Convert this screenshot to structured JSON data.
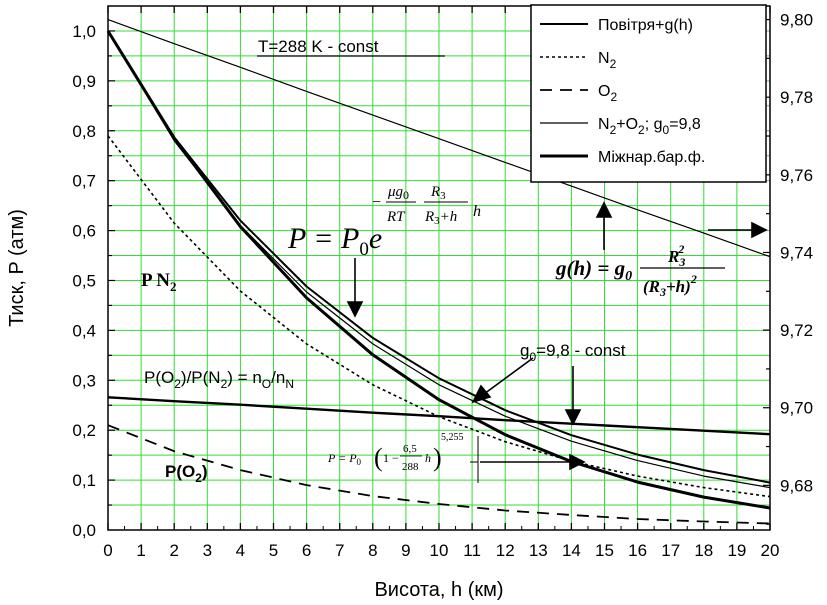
{
  "chart_data": {
    "type": "line",
    "xlabel": "Висота, h (км)",
    "ylabel": "Тиск, P (атм)",
    "xlim": [
      0,
      20
    ],
    "ylim": [
      0,
      1.05
    ],
    "y2lim": [
      9.6685,
      9.8035
    ],
    "x_ticks": [
      "0",
      "1",
      "2",
      "3",
      "4",
      "5",
      "6",
      "7",
      "8",
      "9",
      "10",
      "11",
      "12",
      "13",
      "14",
      "15",
      "16",
      "17",
      "18",
      "19",
      "20"
    ],
    "y_ticks": [
      "0,0",
      "0,1",
      "0,2",
      "0,3",
      "0,4",
      "0,5",
      "0,6",
      "0,7",
      "0,8",
      "0,9",
      "1,0"
    ],
    "y2_ticks": [
      "9,68",
      "9,70",
      "9,72",
      "9,74",
      "9,76",
      "9,78",
      "9,80"
    ],
    "grid": true,
    "grid_color": "#33dd33",
    "legend_position": "top-right",
    "legend": [
      {
        "label": "Повітря+g(h)",
        "style": "solid",
        "width": 2
      },
      {
        "label": "N",
        "sub": "2",
        "style": "dotted",
        "width": 1.6
      },
      {
        "label": "O",
        "sub": "2",
        "style": "dashed",
        "width": 1.8
      },
      {
        "label": "N",
        "sub": "2",
        "rest": "+O",
        "sub2": "2",
        "tail": "; g",
        "sub3": "0",
        "tail2": "=9,8",
        "style": "solid",
        "width": 1.2
      },
      {
        "label": "Міжнар.бар.ф.",
        "style": "solid",
        "width": 3
      }
    ],
    "x": [
      0,
      2,
      4,
      6,
      8,
      10,
      12,
      14,
      16,
      18,
      20
    ],
    "series": [
      {
        "key": "air_gh",
        "values": [
          1.0,
          0.787,
          0.62,
          0.488,
          0.385,
          0.304,
          0.24,
          0.19,
          0.151,
          0.12,
          0.095
        ],
        "style": "solid",
        "width": 2
      },
      {
        "key": "n2",
        "values": [
          0.79,
          0.615,
          0.479,
          0.373,
          0.291,
          0.227,
          0.177,
          0.138,
          0.108,
          0.085,
          0.067
        ],
        "style": "dotted",
        "width": 1.6
      },
      {
        "key": "o2",
        "values": [
          0.21,
          0.158,
          0.12,
          0.09,
          0.068,
          0.052,
          0.039,
          0.03,
          0.022,
          0.017,
          0.013
        ],
        "style": "dashed",
        "width": 1.8
      },
      {
        "key": "n2_o2_g0",
        "values": [
          1.0,
          0.78,
          0.61,
          0.477,
          0.373,
          0.291,
          0.228,
          0.178,
          0.139,
          0.108,
          0.085
        ],
        "style": "solid",
        "width": 1.2
      },
      {
        "key": "intl_baro",
        "values": [
          1.0,
          0.785,
          0.608,
          0.465,
          0.351,
          0.261,
          0.191,
          0.137,
          0.096,
          0.066,
          0.044
        ],
        "style": "solid",
        "width": 3
      },
      {
        "key": "ratio",
        "values": [
          0.266,
          0.258,
          0.251,
          0.243,
          0.235,
          0.228,
          0.22,
          0.213,
          0.206,
          0.199,
          0.192
        ],
        "style": "solid",
        "width": 2.4
      },
      {
        "key": "g_h",
        "axis": "right",
        "values": [
          9.8,
          9.7938,
          9.7877,
          9.7815,
          9.7754,
          9.7693,
          9.7632,
          9.7571,
          9.751,
          9.745,
          9.7389
        ],
        "style": "solid",
        "width": 1.2
      }
    ],
    "annotations": {
      "temperature": "T=288 K - const",
      "pn2": "P N",
      "pn2_sub": "2",
      "po2": "P(O",
      "po2_sub": "2",
      "ratio_parts": [
        "P(O",
        "2",
        ")/P(N",
        "2",
        ") = n",
        "O",
        "/n",
        "N"
      ],
      "g0_const": "g",
      "g0_const_sub": "0",
      "g0_const_rest": "=9,8 - const",
      "formula_exp": "P = P",
      "formula_exp_sub": "0",
      "formula_exp_e": "e",
      "formula_exp_mu": "μg",
      "formula_exp_mu_sub": "0",
      "formula_exp_rt": "RT",
      "formula_exp_r3": "R",
      "formula_exp_r3_sub": "3",
      "formula_exp_den": "R",
      "formula_exp_den_sub": "3",
      "formula_exp_den_rest": "+h",
      "formula_exp_h": "h",
      "formula_g": "g(h) = g",
      "formula_g_sub": "0",
      "formula_g_num": "R",
      "formula_g_num_sub": "3",
      "formula_g_num_sup": "2",
      "formula_g_den": "(R",
      "formula_g_den_sub": "3",
      "formula_g_den_rest": "+h)",
      "formula_g_den_sup": "2",
      "formula_baro": "P = P",
      "formula_baro_sub": "0",
      "formula_baro_num": "6,5",
      "formula_baro_den": "288",
      "formula_baro_one": "1 −",
      "formula_baro_h": "h",
      "formula_baro_exp": "5,255"
    }
  }
}
